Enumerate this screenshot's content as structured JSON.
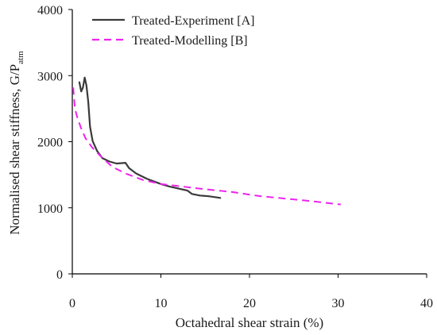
{
  "chart_data": {
    "type": "line",
    "xlabel": "Octahedral shear strain (%)",
    "ylabel_main": "Normalised shear stiffness, G/P",
    "ylabel_sub": "atm",
    "xlim": [
      0,
      40
    ],
    "ylim": [
      0,
      4000
    ],
    "xticks": [
      0,
      10,
      20,
      30,
      40
    ],
    "yticks": [
      0,
      1000,
      2000,
      3000,
      4000
    ],
    "grid": false,
    "legend_position": "top-left",
    "series": [
      {
        "name": "Treated-Experiment [A]",
        "color": "#3a3a3a",
        "style": "solid",
        "x": [
          0.8,
          1.0,
          1.2,
          1.4,
          1.6,
          1.8,
          2.0,
          2.3,
          2.8,
          3.4,
          4.2,
          5.0,
          6.0,
          6.4,
          7.2,
          8.4,
          10.0,
          11.0,
          12.0,
          13.0,
          13.5,
          14.4,
          15.4,
          16.7
        ],
        "y": [
          2900,
          2760,
          2820,
          2970,
          2850,
          2600,
          2230,
          2010,
          1860,
          1750,
          1700,
          1670,
          1680,
          1600,
          1520,
          1440,
          1360,
          1320,
          1290,
          1260,
          1210,
          1185,
          1175,
          1150
        ]
      },
      {
        "name": "Treated-Modelling [B]",
        "color": "#ee22ee",
        "style": "dashed",
        "x": [
          0.1,
          0.3,
          0.6,
          1.0,
          1.5,
          2.2,
          3.2,
          4.5,
          6.0,
          8.0,
          10.0,
          12.5,
          15.0,
          18.0,
          21.0,
          24.0,
          27.0,
          30.3
        ],
        "y": [
          2820,
          2500,
          2350,
          2200,
          2050,
          1920,
          1780,
          1620,
          1520,
          1420,
          1360,
          1320,
          1280,
          1240,
          1180,
          1140,
          1100,
          1050
        ]
      }
    ]
  }
}
